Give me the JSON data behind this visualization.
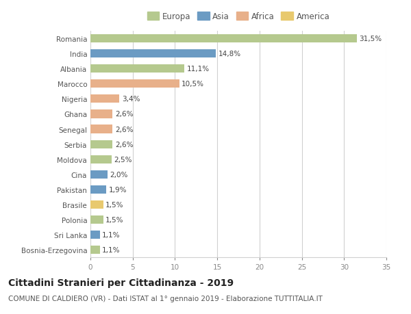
{
  "countries": [
    "Romania",
    "India",
    "Albania",
    "Marocco",
    "Nigeria",
    "Ghana",
    "Senegal",
    "Serbia",
    "Moldova",
    "Cina",
    "Pakistan",
    "Brasile",
    "Polonia",
    "Sri Lanka",
    "Bosnia-Erzegovina"
  ],
  "values": [
    31.5,
    14.8,
    11.1,
    10.5,
    3.4,
    2.6,
    2.6,
    2.6,
    2.5,
    2.0,
    1.9,
    1.5,
    1.5,
    1.1,
    1.1
  ],
  "labels": [
    "31,5%",
    "14,8%",
    "11,1%",
    "10,5%",
    "3,4%",
    "2,6%",
    "2,6%",
    "2,6%",
    "2,5%",
    "2,0%",
    "1,9%",
    "1,5%",
    "1,5%",
    "1,1%",
    "1,1%"
  ],
  "colors": [
    "#b5c98e",
    "#6b9bc3",
    "#b5c98e",
    "#e8b08a",
    "#e8b08a",
    "#e8b08a",
    "#e8b08a",
    "#b5c98e",
    "#b5c98e",
    "#6b9bc3",
    "#6b9bc3",
    "#e8c96e",
    "#b5c98e",
    "#6b9bc3",
    "#b5c98e"
  ],
  "legend": [
    {
      "label": "Europa",
      "color": "#b5c98e"
    },
    {
      "label": "Asia",
      "color": "#6b9bc3"
    },
    {
      "label": "Africa",
      "color": "#e8b08a"
    },
    {
      "label": "America",
      "color": "#e8c96e"
    }
  ],
  "xlim": [
    0,
    35
  ],
  "xticks": [
    0,
    5,
    10,
    15,
    20,
    25,
    30,
    35
  ],
  "title": "Cittadini Stranieri per Cittadinanza - 2019",
  "subtitle": "COMUNE DI CALDIERO (VR) - Dati ISTAT al 1° gennaio 2019 - Elaborazione TUTTITALIA.IT",
  "bg_color": "#ffffff",
  "grid_color": "#d0d0d0",
  "bar_height": 0.55,
  "title_fontsize": 10,
  "subtitle_fontsize": 7.5,
  "label_fontsize": 7.5,
  "tick_fontsize": 7.5,
  "legend_fontsize": 8.5
}
